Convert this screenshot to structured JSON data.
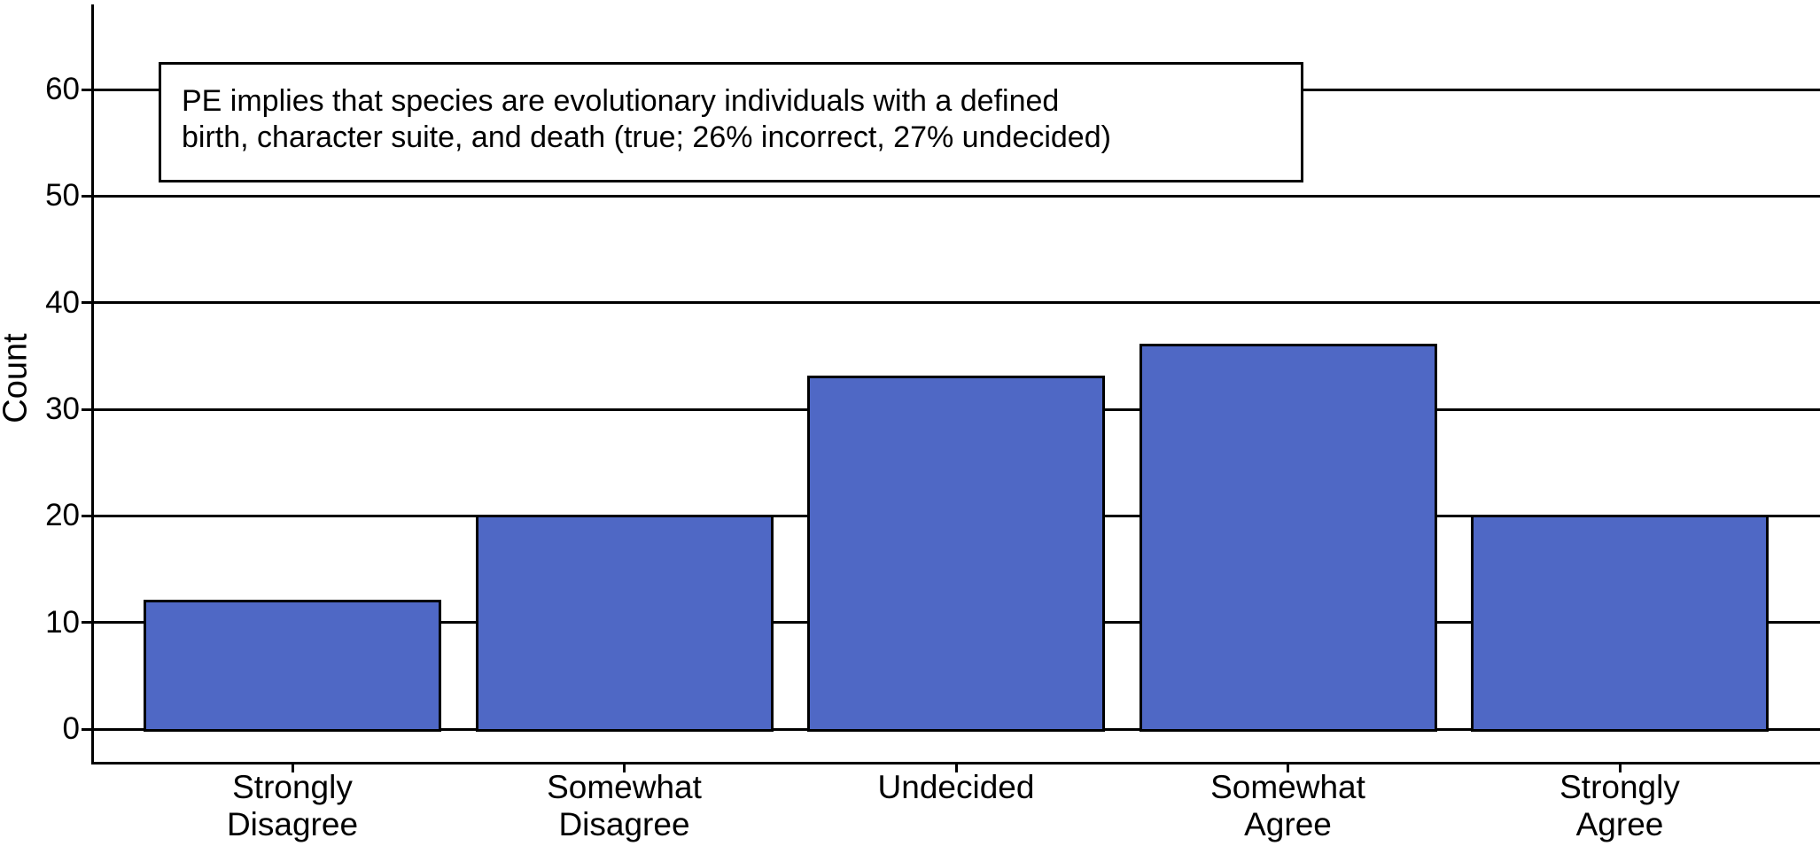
{
  "figure": {
    "background": "#ffffff",
    "line_color": "#000000"
  },
  "chart_data": {
    "type": "bar",
    "annotation": {
      "text": "PE implies that species are evolutionary individuals with a defined birth, character suite, and death (true; 26% incorrect, 27% undecided)",
      "lines": [
        "PE implies that species are evolutionary individuals with a defined",
        "birth, character suite, and death (true; 26% incorrect, 27% undecided)"
      ]
    },
    "categories": [
      "Strongly Disagree",
      "Somewhat Disagree",
      "Undecided",
      "Somewhat Agree",
      "Strongly Agree"
    ],
    "values": [
      12,
      20,
      33,
      36,
      20
    ],
    "xlabel": "",
    "ylabel": "Count",
    "yticks": [
      0,
      10,
      20,
      30,
      40,
      50,
      60
    ],
    "ylim": [
      0,
      69
    ],
    "grid": "horizontal",
    "legend": "none",
    "bar_color": "#4F68C5",
    "bar_border_color": "#000000"
  }
}
